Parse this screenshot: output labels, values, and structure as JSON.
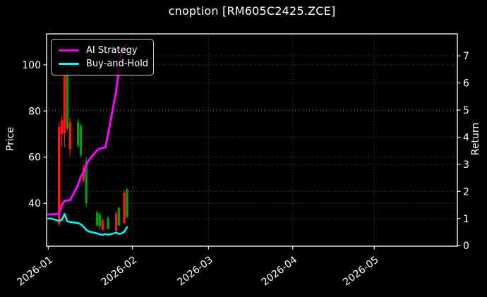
{
  "title": "cnoption [RM605C2425.ZCE]",
  "legend": {
    "items": [
      {
        "label": "AI Strategy",
        "color": "#ff00ff"
      },
      {
        "label": "Buy-and-Hold",
        "color": "#00ffff"
      }
    ]
  },
  "colors": {
    "background": "#000000",
    "foreground": "#ffffff",
    "grid": "#4d4d4d",
    "candle_up": "#009e12",
    "candle_down": "#ff1515",
    "ai_strategy": "#ff00ff",
    "buy_and_hold": "#00ffff"
  },
  "chart_data": {
    "type": "candlestick+line",
    "title": "cnoption [RM605C2425.ZCE]",
    "grid": "dotted",
    "legend_position": "upper-left",
    "axes": {
      "left": {
        "label": "Price",
        "ticks": [
          40,
          60,
          80,
          100
        ],
        "lim": [
          21.4,
          113.4
        ]
      },
      "right": {
        "label": "Return",
        "ticks": [
          0,
          1,
          2,
          3,
          4,
          5,
          6,
          7
        ],
        "lim": [
          -0.02,
          7.81
        ]
      },
      "x": {
        "ticks": [
          {
            "label": "2026-01",
            "day": 0
          },
          {
            "label": "2026-02",
            "day": 31
          },
          {
            "label": "2026-03",
            "day": 59
          },
          {
            "label": "2026-04",
            "day": 90
          },
          {
            "label": "2026-05",
            "day": 120
          }
        ],
        "epoch": "2026-01-01",
        "lim_days": [
          -0.6,
          150.6
        ],
        "tick_rotation_deg": -37
      }
    },
    "candles": [
      {
        "date": "2026-01-05",
        "open": 73.0,
        "high": 75.0,
        "low": 30.0,
        "close": 31.0
      },
      {
        "date": "2026-01-06",
        "open": 76.0,
        "high": 78.0,
        "low": 64.5,
        "close": 70.0
      },
      {
        "date": "2026-01-07",
        "open": 95.0,
        "high": 96.0,
        "low": 64.0,
        "close": 70.5
      },
      {
        "date": "2026-01-08",
        "open": 72.5,
        "high": 99.0,
        "low": 71.5,
        "close": 96.0
      },
      {
        "date": "2026-01-09",
        "open": 75.0,
        "high": 77.0,
        "low": 60.5,
        "close": 63.5
      },
      {
        "date": "2026-01-12",
        "open": 65.0,
        "high": 76.5,
        "low": 64.0,
        "close": 75.0
      },
      {
        "date": "2026-01-13",
        "open": 61.0,
        "high": 74.5,
        "low": 60.0,
        "close": 73.5
      },
      {
        "date": "2026-01-14",
        "open": 55.5,
        "high": 56.5,
        "low": 49.0,
        "close": 50.0
      },
      {
        "date": "2026-01-15",
        "open": 40.0,
        "high": 60.0,
        "low": 38.5,
        "close": 58.0
      },
      {
        "date": "2026-01-19",
        "open": 30.5,
        "high": 37.0,
        "low": 29.5,
        "close": 36.0
      },
      {
        "date": "2026-01-20",
        "open": 30.0,
        "high": 36.0,
        "low": 28.5,
        "close": 35.0
      },
      {
        "date": "2026-01-21",
        "open": 32.5,
        "high": 33.5,
        "low": 28.0,
        "close": 28.5
      },
      {
        "date": "2026-01-23",
        "open": 29.0,
        "high": 34.5,
        "low": 28.5,
        "close": 33.5
      },
      {
        "date": "2026-01-26",
        "open": 35.5,
        "high": 36.5,
        "low": 27.5,
        "close": 28.0
      },
      {
        "date": "2026-01-27",
        "open": 30.5,
        "high": 38.5,
        "low": 30.0,
        "close": 38.0
      },
      {
        "date": "2026-01-29",
        "open": 44.5,
        "high": 45.5,
        "low": 31.0,
        "close": 31.5
      },
      {
        "date": "2026-01-30",
        "open": 34.0,
        "high": 46.5,
        "low": 33.5,
        "close": 46.0
      }
    ],
    "series": [
      {
        "name": "AI Strategy",
        "axis": "right",
        "color": "#ff00ff",
        "width": 3,
        "points": [
          [
            "2026-01-01",
            1.15
          ],
          [
            "2026-01-02",
            1.15
          ],
          [
            "2026-01-05",
            1.18
          ],
          [
            "2026-01-06",
            1.5
          ],
          [
            "2026-01-07",
            1.65
          ],
          [
            "2026-01-08",
            1.67
          ],
          [
            "2026-01-09",
            1.67
          ],
          [
            "2026-01-12",
            2.25
          ],
          [
            "2026-01-13",
            2.55
          ],
          [
            "2026-01-14",
            2.7
          ],
          [
            "2026-01-15",
            3.0
          ],
          [
            "2026-01-16",
            3.16
          ],
          [
            "2026-01-19",
            3.52
          ],
          [
            "2026-01-20",
            3.58
          ],
          [
            "2026-01-21",
            3.6
          ],
          [
            "2026-01-22",
            3.62
          ],
          [
            "2026-01-23",
            4.1
          ],
          [
            "2026-01-26",
            5.7
          ],
          [
            "2026-01-27",
            6.5
          ],
          [
            "2026-01-28",
            7.1
          ],
          [
            "2026-01-29",
            7.32
          ],
          [
            "2026-01-30",
            7.42
          ]
        ]
      },
      {
        "name": "Buy-and-Hold",
        "axis": "right",
        "color": "#00ffff",
        "width": 2.5,
        "points": [
          [
            "2026-01-01",
            1.0
          ],
          [
            "2026-01-02",
            1.0
          ],
          [
            "2026-01-05",
            0.91
          ],
          [
            "2026-01-06",
            0.95
          ],
          [
            "2026-01-07",
            1.17
          ],
          [
            "2026-01-08",
            0.9
          ],
          [
            "2026-01-09",
            0.87
          ],
          [
            "2026-01-12",
            0.83
          ],
          [
            "2026-01-13",
            0.79
          ],
          [
            "2026-01-14",
            0.7
          ],
          [
            "2026-01-15",
            0.58
          ],
          [
            "2026-01-16",
            0.52
          ],
          [
            "2026-01-19",
            0.45
          ],
          [
            "2026-01-20",
            0.42
          ],
          [
            "2026-01-21",
            0.4
          ],
          [
            "2026-01-22",
            0.43
          ],
          [
            "2026-01-23",
            0.4
          ],
          [
            "2026-01-26",
            0.48
          ],
          [
            "2026-01-27",
            0.43
          ],
          [
            "2026-01-28",
            0.45
          ],
          [
            "2026-01-29",
            0.52
          ],
          [
            "2026-01-30",
            0.68
          ]
        ]
      }
    ]
  }
}
